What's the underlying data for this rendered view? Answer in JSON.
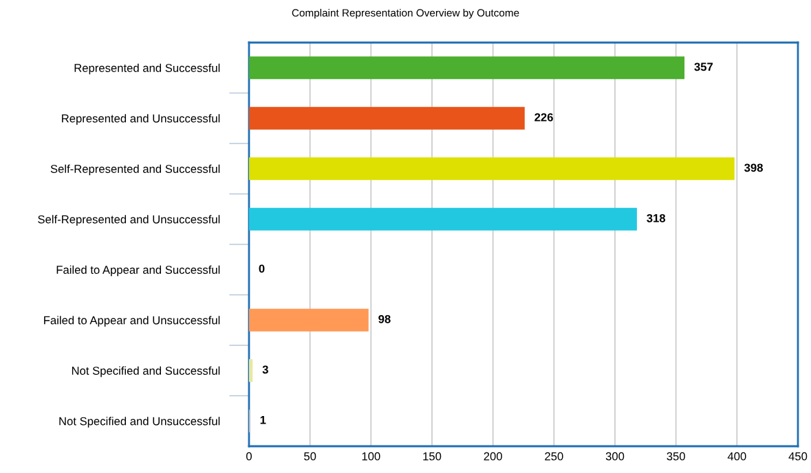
{
  "chart_data": {
    "type": "bar",
    "orientation": "horizontal",
    "title": "Complaint Representation Overview by Outcome",
    "categories": [
      "Represented and Successful",
      "Represented and Unsuccessful",
      "Self-Represented and Successful",
      "Self-Represented and Unsuccessful",
      "Failed to Appear and Successful",
      "Failed to Appear and Unsuccessful",
      "Not Specified and Successful",
      "Not Specified and Unsuccessful"
    ],
    "values": [
      357,
      226,
      398,
      318,
      0,
      98,
      3,
      1
    ],
    "colors": [
      "#4caf2f",
      "#e8541a",
      "#dde000",
      "#22c8e0",
      "#7f7f7f",
      "#ff9955",
      "#e8e8a0",
      "#c0c0c0"
    ],
    "xlim": [
      0,
      450
    ],
    "xticks": [
      0,
      50,
      100,
      150,
      200,
      250,
      300,
      350,
      400,
      450
    ],
    "grid": "x",
    "data_labels": true,
    "legend": false
  }
}
